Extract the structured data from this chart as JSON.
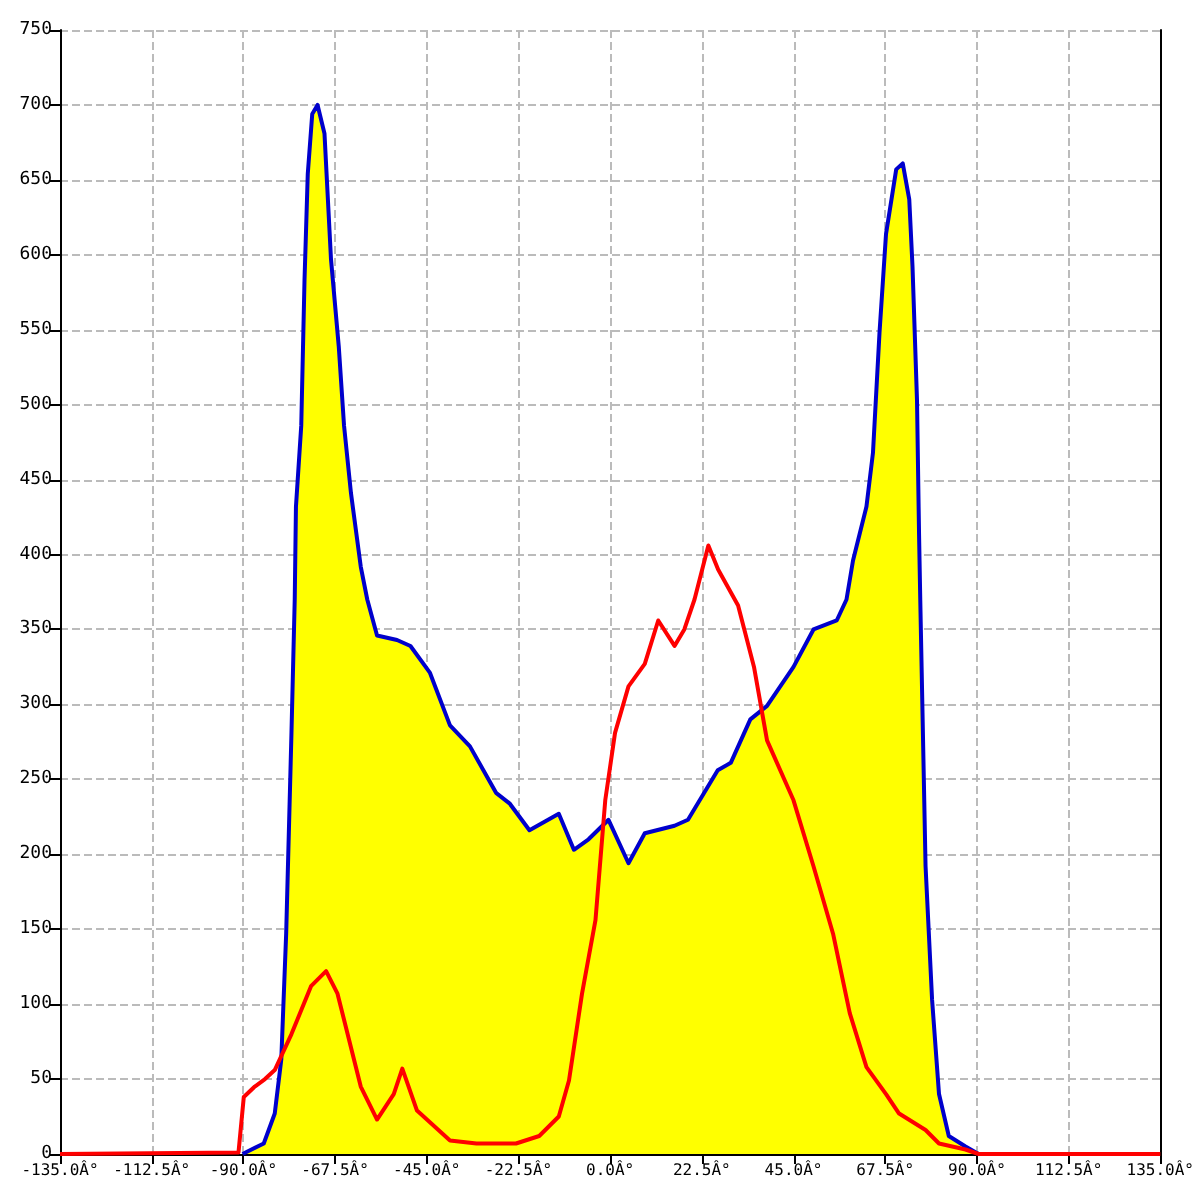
{
  "chart_data": {
    "type": "line",
    "xlim": [
      -135,
      135
    ],
    "xticks": [
      {
        "value": -135,
        "label": "-135.0Â°"
      },
      {
        "value": -112.5,
        "label": "-112.5Â°"
      },
      {
        "value": -90,
        "label": "-90.0Â°"
      },
      {
        "value": -67.5,
        "label": "-67.5Â°"
      },
      {
        "value": -45,
        "label": "-45.0Â°"
      },
      {
        "value": -22.5,
        "label": "-22.5Â°"
      },
      {
        "value": 0,
        "label": "0.0Â°"
      },
      {
        "value": 22.5,
        "label": "22.5Â°"
      },
      {
        "value": 45,
        "label": "45.0Â°"
      },
      {
        "value": 67.5,
        "label": "67.5Â°"
      },
      {
        "value": 90,
        "label": "90.0Â°"
      },
      {
        "value": 112.5,
        "label": "112.5Â°"
      },
      {
        "value": 135,
        "label": "135.0Â°"
      }
    ],
    "ylim": [
      0,
      750
    ],
    "yticks": [
      0,
      50,
      100,
      150,
      200,
      250,
      300,
      350,
      400,
      450,
      500,
      550,
      600,
      650,
      700,
      750
    ],
    "grid": true,
    "marker": "none",
    "line_style": "solid",
    "series": [
      {
        "type": "area",
        "color": "#ffff00",
        "x": [
          -90.2,
          -85,
          -82.3,
          -80.7,
          -79.5,
          -78.2,
          -77.4,
          -77.1,
          -75.8,
          -75,
          -74.2,
          -73.1,
          -71.8,
          -70.1,
          -68.5,
          -66.6,
          -65.3,
          -63.6,
          -61.2,
          -59.6,
          -57.2,
          -52.3,
          -49,
          -44.2,
          -39.3,
          -34.4,
          -28,
          -24.7,
          -19.8,
          -12.6,
          -8.9,
          -5.3,
          -0.4,
          4.5,
          8.5,
          15.8,
          19.1,
          26.4,
          29.6,
          34.4,
          38.5,
          45,
          49.9,
          55.6,
          58,
          59.6,
          62.9,
          64.5,
          66.1,
          67.7,
          70.2,
          71.8,
          73.4,
          74.2,
          75.3,
          75.8,
          76.1,
          77.4,
          79,
          80.7,
          83.1,
          87.2,
          90.4
        ],
        "values": [
          0,
          7,
          27,
          63,
          147,
          281,
          370,
          432,
          486,
          583,
          654,
          694,
          700,
          681,
          597,
          539,
          486,
          441,
          392,
          370,
          346,
          343,
          339,
          321,
          286,
          272,
          241,
          234,
          216,
          227,
          203,
          210,
          223,
          194,
          214,
          219,
          223,
          256,
          261,
          290,
          299,
          325,
          350,
          356,
          370,
          396,
          432,
          468,
          548,
          614,
          657,
          661,
          637,
          592,
          503,
          414,
          370,
          192,
          103,
          40,
          12,
          5,
          0
        ]
      },
      {
        "type": "line",
        "color": "#ff0000",
        "x": [
          -135,
          -91.2,
          -89.9,
          -87.2,
          -84.7,
          -82.3,
          -78.2,
          -73.4,
          -69.7,
          -66.9,
          -61.2,
          -57.2,
          -53.1,
          -51,
          -47.4,
          -39.3,
          -32.8,
          -23.1,
          -17.4,
          -12.6,
          -10.1,
          -6.9,
          -3.6,
          -1.2,
          1.2,
          4.5,
          8.5,
          11.8,
          15.8,
          18.2,
          20.7,
          24.1,
          26.5,
          31.4,
          35.3,
          38.5,
          45,
          49.9,
          54.7,
          58.8,
          62.9,
          67.7,
          70.9,
          77.4,
          80.7,
          87.2,
          90.4,
          135
        ],
        "values": [
          0,
          1,
          38,
          45,
          50,
          56,
          80,
          112,
          122,
          107,
          45,
          23,
          40,
          57,
          29,
          9,
          7,
          7,
          12,
          25,
          49,
          107,
          156,
          236,
          281,
          312,
          327,
          356,
          339,
          350,
          370,
          406,
          390,
          366,
          325,
          276,
          236,
          192,
          147,
          94,
          58,
          40,
          27,
          16,
          7,
          3,
          0,
          0
        ]
      }
    ]
  }
}
